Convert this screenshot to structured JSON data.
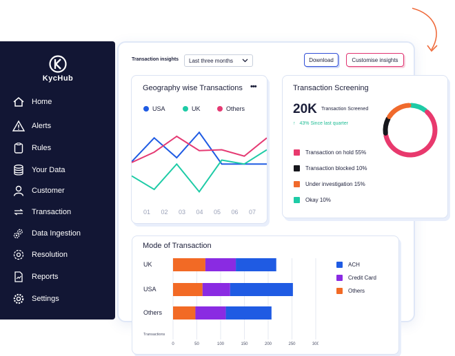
{
  "brand": {
    "name": "KycHub"
  },
  "sidebar": {
    "items": [
      {
        "label": "Home",
        "icon": "home-icon"
      },
      {
        "label": "Alerts",
        "icon": "alert-icon"
      },
      {
        "label": "Rules",
        "icon": "clipboard-icon"
      },
      {
        "label": "Your Data",
        "icon": "database-icon"
      },
      {
        "label": "Customer",
        "icon": "user-icon"
      },
      {
        "label": "Transaction",
        "icon": "transfer-icon"
      },
      {
        "label": "Data Ingestion",
        "icon": "gears-icon"
      },
      {
        "label": "Resolution",
        "icon": "gear-cycle-icon"
      },
      {
        "label": "Reports",
        "icon": "report-icon"
      },
      {
        "label": "Settings",
        "icon": "settings-icon"
      }
    ]
  },
  "toolbar": {
    "title": "Transaction insights",
    "period_value": "Last three months",
    "download_label": "Download",
    "customise_label": "Customise insights"
  },
  "geography": {
    "title": "Geography wise Transactions",
    "more_label": "•••",
    "legend": [
      {
        "name": "USA",
        "color": "#1f5be3"
      },
      {
        "name": "UK",
        "color": "#1ecba6"
      },
      {
        "name": "Others",
        "color": "#e53a73"
      }
    ]
  },
  "screening": {
    "title": "Transaction Screening",
    "total": "20K",
    "total_label": "Transaction Screened",
    "change_arrow": "↑",
    "change_text": "43% Since last quarter",
    "items": [
      {
        "label": "Transaction on hold 55%",
        "color": "#e8396d"
      },
      {
        "label": "Transaction blocked 10%",
        "color": "#16171c"
      },
      {
        "label": "Under investigation 15%",
        "color": "#f06a2c"
      },
      {
        "label": "Okay 10%",
        "color": "#1ecba6"
      }
    ]
  },
  "mode": {
    "title": "Mode of Transaction",
    "legend": [
      {
        "name": "ACH",
        "color": "#1f5be3"
      },
      {
        "name": "Credit Card",
        "color": "#8a2be2"
      },
      {
        "name": "Others",
        "color": "#f26a25"
      }
    ]
  },
  "chart_data": [
    {
      "type": "line",
      "title": "Geography wise Transactions",
      "x": [
        "01",
        "02",
        "03",
        "04",
        "05",
        "06",
        "07"
      ],
      "ylim": [
        0,
        100
      ],
      "series": [
        {
          "name": "USA",
          "values": [
            48,
            78,
            53,
            85,
            45,
            45,
            45
          ]
        },
        {
          "name": "UK",
          "values": [
            30,
            13,
            45,
            10,
            50,
            45,
            63
          ]
        },
        {
          "name": "Others",
          "values": [
            47,
            60,
            80,
            62,
            63,
            55,
            78
          ]
        }
      ]
    },
    {
      "type": "pie",
      "title": "Transaction Screening",
      "labels": [
        "Transaction on hold",
        "Transaction blocked",
        "Under investigation",
        "Okay"
      ],
      "values": [
        55,
        10,
        15,
        10
      ]
    },
    {
      "type": "bar",
      "title": "Mode of Transaction",
      "orientation": "horizontal",
      "stacked": true,
      "categories": [
        "UK",
        "USA",
        "Others"
      ],
      "xlabel": "Transactions",
      "xticks": [
        0,
        50,
        100,
        150,
        200,
        250,
        300
      ],
      "xlim": [
        0,
        300
      ],
      "series": [
        {
          "name": "Others",
          "values": [
            68,
            62,
            47
          ]
        },
        {
          "name": "Credit Card",
          "values": [
            64,
            58,
            64
          ]
        },
        {
          "name": "ACH",
          "values": [
            85,
            132,
            96
          ]
        }
      ]
    }
  ]
}
